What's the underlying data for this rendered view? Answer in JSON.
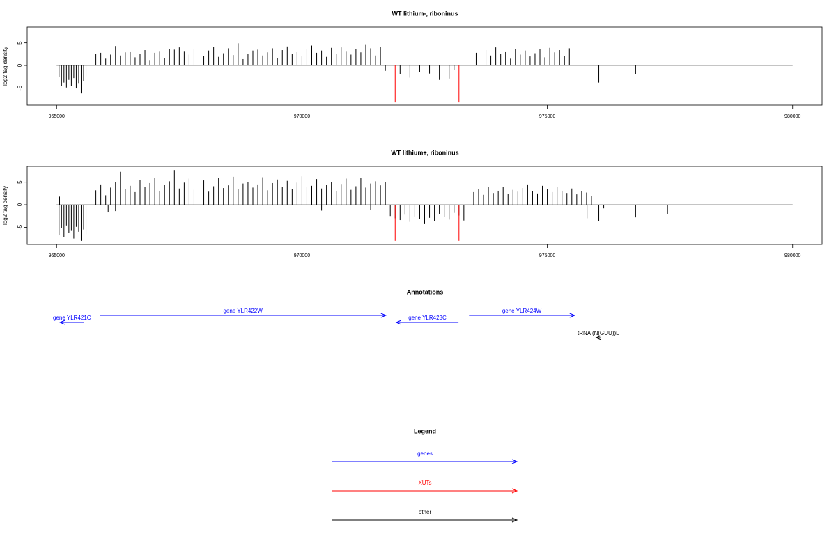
{
  "chart_data": [
    {
      "type": "spike",
      "title": "WT lithium-, riboninus",
      "ylabel": "log2 tag density",
      "xlim": [
        964400,
        980600
      ],
      "xticks": [
        965000,
        970000,
        975000,
        980000
      ],
      "ylim": [
        -8.8,
        8.5
      ],
      "yticks": [
        -5,
        0,
        5
      ],
      "series": [
        {
          "color": "#000000",
          "x": [
            965050,
            965100,
            965150,
            965200,
            965250,
            965300,
            965350,
            965400,
            965450,
            965500,
            965550,
            965600,
            965800,
            965900,
            966000,
            966100,
            966200,
            966300,
            966400,
            966500,
            966600,
            966700,
            966800,
            966900,
            967000,
            967100,
            967200,
            967300,
            967400,
            967500,
            967600,
            967700,
            967800,
            967900,
            968000,
            968100,
            968200,
            968300,
            968400,
            968500,
            968600,
            968700,
            968800,
            968900,
            969000,
            969100,
            969200,
            969300,
            969400,
            969500,
            969600,
            969700,
            969800,
            969900,
            970000,
            970100,
            970200,
            970300,
            970400,
            970500,
            970600,
            970700,
            970800,
            970900,
            971000,
            971100,
            971200,
            971300,
            971400,
            971500,
            971600,
            971700,
            972000,
            972200,
            972400,
            972600,
            972800,
            973000,
            973100,
            973550,
            973650,
            973750,
            973850,
            973950,
            974050,
            974150,
            974250,
            974350,
            974450,
            974550,
            974650,
            974750,
            974850,
            974950,
            975050,
            975150,
            975250,
            975350,
            975450,
            976050,
            976800
          ],
          "values": [
            -2.5,
            -4.6,
            -3.8,
            -4.9,
            -3.2,
            -4.5,
            -2.8,
            -5.1,
            -3.9,
            -6.2,
            -3.5,
            -2.4,
            2.6,
            2.8,
            1.5,
            2.4,
            4.3,
            2.2,
            2.9,
            3.1,
            1.8,
            2.5,
            3.4,
            1.2,
            2.8,
            3.2,
            1.6,
            3.7,
            3.5,
            4.0,
            3.2,
            2.4,
            3.6,
            3.9,
            2.1,
            3.3,
            4.1,
            1.9,
            2.7,
            3.8,
            2.3,
            4.9,
            1.4,
            2.6,
            3.3,
            3.5,
            2.2,
            2.9,
            3.8,
            1.7,
            3.4,
            4.2,
            2.5,
            3.1,
            2.0,
            3.6,
            4.4,
            2.8,
            3.3,
            1.9,
            3.9,
            2.6,
            4.0,
            3.2,
            2.4,
            3.7,
            2.9,
            4.7,
            3.8,
            2.2,
            4.1,
            -1.2,
            -2.0,
            -2.7,
            -1.5,
            -1.8,
            -3.2,
            -2.9,
            -1.0,
            2.8,
            1.9,
            3.4,
            2.2,
            4.0,
            2.6,
            3.1,
            1.5,
            3.7,
            2.4,
            3.3,
            2.0,
            2.7,
            3.6,
            1.8,
            3.9,
            2.9,
            3.4,
            2.1,
            3.8,
            -3.8,
            -2.0
          ]
        },
        {
          "color": "#ff0000",
          "x": [
            971900,
            973200
          ],
          "values": [
            -8.2,
            -8.2
          ]
        }
      ]
    },
    {
      "type": "spike",
      "title": "WT lithium+, riboninus",
      "ylabel": "log2 tag density",
      "xlim": [
        964400,
        980600
      ],
      "xticks": [
        965000,
        970000,
        975000,
        980000
      ],
      "ylim": [
        -8.8,
        8.5
      ],
      "yticks": [
        -5,
        0,
        5
      ],
      "series": [
        {
          "color": "#000000",
          "x": [
            965060,
            965050,
            965100,
            965150,
            965200,
            965250,
            965300,
            965350,
            965400,
            965450,
            965500,
            965550,
            965600,
            965800,
            965900,
            966000,
            966100,
            966200,
            966300,
            966400,
            966500,
            966600,
            966700,
            966800,
            966900,
            967000,
            967100,
            967200,
            967300,
            967400,
            967500,
            967600,
            967700,
            967800,
            967900,
            968000,
            968100,
            968200,
            968300,
            968400,
            968500,
            968600,
            968700,
            968800,
            968900,
            969000,
            969100,
            969200,
            969300,
            969400,
            969500,
            969600,
            969700,
            969800,
            969900,
            970000,
            970100,
            970200,
            970300,
            970400,
            970500,
            970600,
            970700,
            970800,
            970900,
            971000,
            971100,
            971200,
            971300,
            971400,
            971500,
            971600,
            971700,
            966050,
            966200,
            970400,
            971400,
            971800,
            971900,
            972000,
            972100,
            972200,
            972300,
            972400,
            972500,
            972600,
            972700,
            972800,
            972900,
            973000,
            973100,
            973200,
            973300,
            973500,
            973600,
            973700,
            973800,
            973900,
            974000,
            974100,
            974200,
            974300,
            974400,
            974500,
            974600,
            974700,
            974800,
            974900,
            975000,
            975100,
            975200,
            975300,
            975400,
            975500,
            975600,
            975700,
            975800,
            975900,
            975810,
            976050,
            976150,
            976800,
            977450
          ],
          "values": [
            1.8,
            -6.8,
            -5.2,
            -7.1,
            -4.6,
            -6.3,
            -5.8,
            -7.5,
            -4.9,
            -6.0,
            -8.0,
            -5.5,
            -6.6,
            3.2,
            4.5,
            2.1,
            3.8,
            5.0,
            7.3,
            3.5,
            4.2,
            2.8,
            5.5,
            3.9,
            4.8,
            6.0,
            3.1,
            4.4,
            5.2,
            7.7,
            3.6,
            4.9,
            5.8,
            3.3,
            4.6,
            5.4,
            2.9,
            4.1,
            5.9,
            3.7,
            4.3,
            6.2,
            3.4,
            4.7,
            5.1,
            3.8,
            4.5,
            6.1,
            3.2,
            4.8,
            5.6,
            4.0,
            5.3,
            3.5,
            4.9,
            6.3,
            3.9,
            4.2,
            5.7,
            3.6,
            4.4,
            5.0,
            3.1,
            4.6,
            5.8,
            3.3,
            4.1,
            6.0,
            3.8,
            4.7,
            5.2,
            4.3,
            5.1,
            -1.7,
            -1.4,
            -1.3,
            -1.2,
            -2.5,
            -3.0,
            -3.4,
            -2.2,
            -3.8,
            -2.6,
            -3.1,
            -4.3,
            -2.9,
            -3.6,
            -2.0,
            -2.7,
            -3.3,
            -1.8,
            -2.4,
            -3.5,
            2.8,
            3.5,
            2.2,
            3.9,
            2.6,
            3.1,
            4.0,
            2.4,
            3.3,
            2.9,
            3.7,
            4.5,
            3.0,
            2.5,
            4.2,
            3.4,
            2.8,
            3.9,
            3.1,
            2.6,
            3.6,
            2.3,
            3.0,
            2.7,
            2.0,
            -3.0,
            -3.6,
            -0.8,
            -2.8,
            -2.0
          ]
        },
        {
          "color": "#ff0000",
          "x": [
            971900,
            973200
          ],
          "values": [
            -8.0,
            -8.0
          ]
        }
      ]
    }
  ],
  "annotations": {
    "title": "Annotations",
    "items": [
      {
        "label": "gene YLR421C",
        "start": 965555,
        "end": 965071,
        "color": "#0000ff"
      },
      {
        "label": "gene YLR422W",
        "start": 965883,
        "end": 971709,
        "color": "#0000ff"
      },
      {
        "label": "gene YLR423C",
        "start": 973190,
        "end": 971923,
        "color": "#0000ff"
      },
      {
        "label": "gene YLR424W",
        "start": 973405,
        "end": 975556,
        "color": "#0000ff"
      },
      {
        "label": "tRNA (N(GUU))L",
        "start": 976083,
        "end": 975997,
        "color": "#000000"
      }
    ]
  },
  "legend": {
    "title": "Legend",
    "items": [
      {
        "label": "genes",
        "color": "#0000ff"
      },
      {
        "label": "XUTs",
        "color": "#ff0000"
      },
      {
        "label": "other",
        "color": "#000000"
      }
    ]
  }
}
